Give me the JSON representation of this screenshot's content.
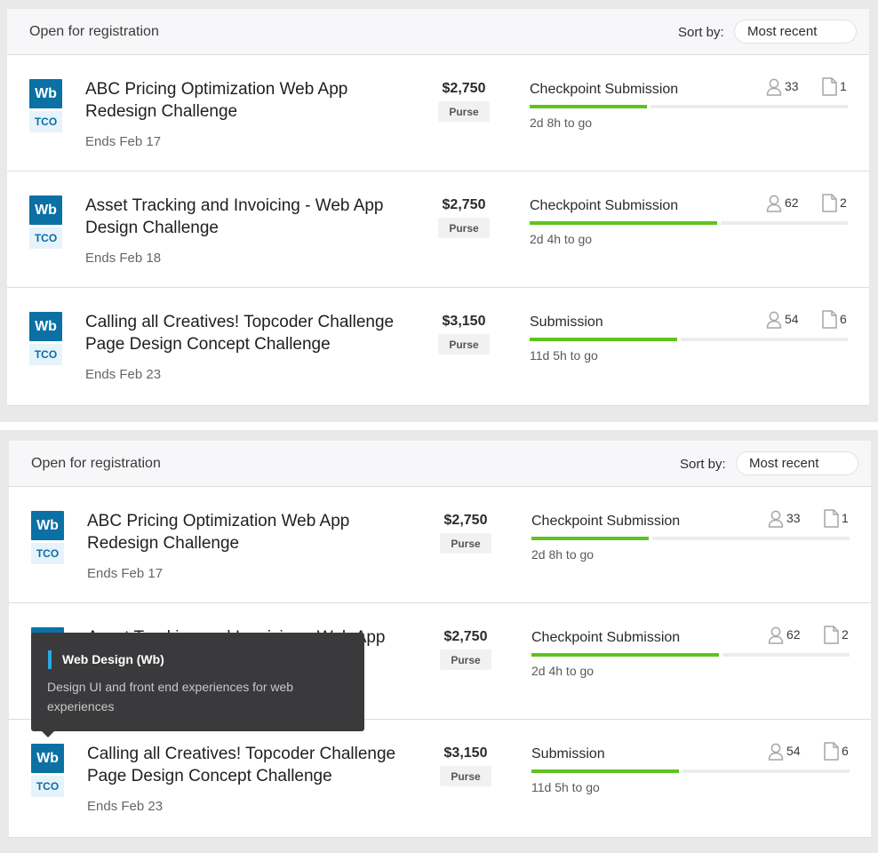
{
  "header": {
    "title": "Open for registration",
    "sort_label": "Sort by:",
    "sort_value": "Most recent"
  },
  "challenges": [
    {
      "track": "Wb",
      "event": "TCO",
      "title": "ABC Pricing Optimization Web App Redesign Challenge",
      "ends": "Ends Feb 17",
      "prize": "$2,750",
      "prize_label": "Purse",
      "phase": "Checkpoint Submission",
      "phase_progress": 0.37,
      "time_left": "2d 8h to go",
      "registrants": "33",
      "submissions": "1"
    },
    {
      "track": "Wb",
      "event": "TCO",
      "title": "Asset Tracking and Invoicing - Web App Design Challenge",
      "ends": "Ends Feb 18",
      "prize": "$2,750",
      "prize_label": "Purse",
      "phase": "Checkpoint Submission",
      "phase_progress": 0.59,
      "time_left": "2d 4h to go",
      "registrants": "62",
      "submissions": "2"
    },
    {
      "track": "Wb",
      "event": "TCO",
      "title": "Calling all Creatives! Topcoder Challenge Page Design Concept Challenge",
      "ends": "Ends Feb 23",
      "prize": "$3,150",
      "prize_label": "Purse",
      "phase": "Submission",
      "phase_progress": 0.465,
      "time_left": "11d 5h to go",
      "registrants": "54",
      "submissions": "6"
    }
  ],
  "tooltip": {
    "title": "Web Design (Wb)",
    "description": "Design UI and front end experiences for web experiences"
  },
  "colors": {
    "track_blue": "#0b71a5",
    "progress_green": "#5ec31f",
    "tooltip_accent": "#2ba8e4"
  },
  "icons": {
    "registrants": "person-icon",
    "submissions": "document-icon"
  }
}
